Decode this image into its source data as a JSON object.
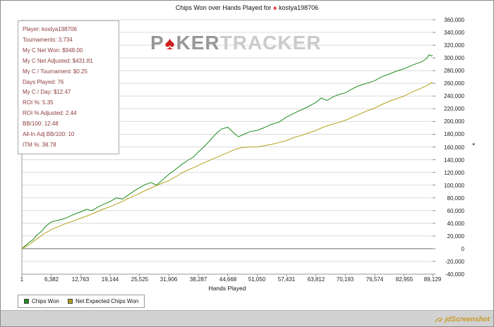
{
  "header": {
    "title_prefix": "Chips Won over Hands Played for",
    "player": "kostya198706"
  },
  "icons": {
    "site_spade": "♠",
    "watermark_spade": "♠"
  },
  "watermark": {
    "p": "P",
    "ker": "KER",
    "tracker": "TRACKER"
  },
  "stats_panel": {
    "items": [
      {
        "label": "Player:",
        "value": "kostya198706"
      },
      {
        "label": "Tournaments:",
        "value": "3,734"
      },
      {
        "label": "My C Net Won:",
        "value": "$948.00"
      },
      {
        "label": "My C Net Adjusted:",
        "value": "$431.81"
      },
      {
        "label": "My C / Tournament:",
        "value": "$0.25"
      },
      {
        "label": "Days Played:",
        "value": "76"
      },
      {
        "label": "My C / Day:",
        "value": "$12.47"
      },
      {
        "label": "ROI %:",
        "value": "5.35"
      },
      {
        "label": "ROI % Adjusted:",
        "value": "2.44"
      },
      {
        "label": "BB/100:",
        "value": "12.48"
      },
      {
        "label": "All-In Adj BB/100:",
        "value": "10"
      },
      {
        "label": "ITM %:",
        "value": "38.78"
      }
    ]
  },
  "axis": {
    "asterisk": "*"
  },
  "legend": {
    "items": [
      {
        "label": "Chips Won",
        "color": "#1e8c1e"
      },
      {
        "label": "Net Expected Chips Won",
        "color": "#b5a018"
      }
    ]
  },
  "footer": {
    "watermark": "jdScreenshot"
  },
  "chart_data": {
    "type": "line",
    "title": "Chips Won over Hands Played for kostya198706",
    "xlabel": "Hands Played",
    "ylabel": "",
    "xlim": [
      1,
      89129
    ],
    "ylim": [
      -40000,
      360000
    ],
    "grid": "horizontal",
    "legend_position": "bottom-left",
    "y_ticks": [
      360000,
      340000,
      320000,
      300000,
      280000,
      260000,
      240000,
      220000,
      200000,
      180000,
      160000,
      140000,
      120000,
      100000,
      80000,
      60000,
      40000,
      20000,
      0,
      -20000,
      -40000
    ],
    "y_tick_labels": [
      "360,000",
      "340,000",
      "320,000",
      "300,000",
      "280,000",
      "260,000",
      "240,000",
      "220,000",
      "200,000",
      "180,000",
      "160,000",
      "140,000",
      "120,000",
      "100,000",
      "80,000",
      "60,000",
      "40,000",
      "20,000",
      "0",
      "-20,000",
      "-40,000"
    ],
    "x_ticks": [
      1,
      6382,
      12763,
      19144,
      25525,
      31906,
      38287,
      44668,
      51050,
      57431,
      63812,
      70193,
      76574,
      82955,
      89129
    ],
    "x_tick_labels": [
      "1",
      "6,382",
      "12,763",
      "19,144",
      "25,525",
      "31,906",
      "38,287",
      "44,668",
      "51,050",
      "57,431",
      "63,812",
      "70,193",
      "76,574",
      "82,955",
      "89,129"
    ],
    "series": [
      {
        "name": "Chips Won",
        "color": "#1e8c1e",
        "points": [
          [
            1,
            0
          ],
          [
            800,
            5000
          ],
          [
            1600,
            10000
          ],
          [
            2400,
            14000
          ],
          [
            3200,
            21000
          ],
          [
            4200,
            27000
          ],
          [
            5300,
            36000
          ],
          [
            6382,
            42000
          ],
          [
            7400,
            44000
          ],
          [
            8600,
            46000
          ],
          [
            9800,
            49000
          ],
          [
            11000,
            53000
          ],
          [
            12000,
            56000
          ],
          [
            12763,
            58000
          ],
          [
            14000,
            62000
          ],
          [
            15200,
            60000
          ],
          [
            16400,
            65000
          ],
          [
            17800,
            70000
          ],
          [
            19144,
            74000
          ],
          [
            20500,
            80000
          ],
          [
            21800,
            78000
          ],
          [
            23200,
            85000
          ],
          [
            24400,
            91000
          ],
          [
            25525,
            96000
          ],
          [
            26800,
            101000
          ],
          [
            28000,
            104000
          ],
          [
            29200,
            100000
          ],
          [
            30500,
            108000
          ],
          [
            31906,
            117000
          ],
          [
            33200,
            124000
          ],
          [
            34600,
            132000
          ],
          [
            36000,
            139000
          ],
          [
            37200,
            144000
          ],
          [
            38287,
            152000
          ],
          [
            39500,
            160000
          ],
          [
            40800,
            170000
          ],
          [
            42000,
            180000
          ],
          [
            43300,
            188000
          ],
          [
            44668,
            191000
          ],
          [
            45800,
            183000
          ],
          [
            47000,
            176000
          ],
          [
            48200,
            180000
          ],
          [
            49500,
            184000
          ],
          [
            51050,
            186000
          ],
          [
            52500,
            190000
          ],
          [
            54000,
            195000
          ],
          [
            55800,
            199000
          ],
          [
            57431,
            207000
          ],
          [
            58800,
            212000
          ],
          [
            60200,
            217000
          ],
          [
            61800,
            222000
          ],
          [
            63812,
            230000
          ],
          [
            65000,
            237000
          ],
          [
            66200,
            233000
          ],
          [
            67600,
            239000
          ],
          [
            69000,
            243000
          ],
          [
            70193,
            245000
          ],
          [
            71600,
            251000
          ],
          [
            73000,
            256000
          ],
          [
            74800,
            260000
          ],
          [
            76574,
            264000
          ],
          [
            78000,
            270000
          ],
          [
            79500,
            274000
          ],
          [
            81200,
            279000
          ],
          [
            82955,
            283000
          ],
          [
            84200,
            287000
          ],
          [
            85600,
            291000
          ],
          [
            86800,
            294000
          ],
          [
            87800,
            299000
          ],
          [
            88400,
            305000
          ],
          [
            88800,
            303000
          ],
          [
            89129,
            304000
          ]
        ]
      },
      {
        "name": "Net Expected Chips Won",
        "color": "#b5a018",
        "points": [
          [
            1,
            0
          ],
          [
            1500,
            6000
          ],
          [
            3000,
            14000
          ],
          [
            4500,
            22000
          ],
          [
            6382,
            30000
          ],
          [
            8000,
            35000
          ],
          [
            9700,
            40000
          ],
          [
            11300,
            44000
          ],
          [
            12763,
            48000
          ],
          [
            14300,
            52000
          ],
          [
            16000,
            57000
          ],
          [
            17600,
            62000
          ],
          [
            19144,
            66000
          ],
          [
            20800,
            71000
          ],
          [
            22500,
            77000
          ],
          [
            24000,
            82000
          ],
          [
            25525,
            87000
          ],
          [
            27200,
            93000
          ],
          [
            28800,
            98000
          ],
          [
            30400,
            103000
          ],
          [
            31906,
            107000
          ],
          [
            33600,
            114000
          ],
          [
            35200,
            121000
          ],
          [
            36800,
            126000
          ],
          [
            38287,
            131000
          ],
          [
            39800,
            136000
          ],
          [
            41400,
            141000
          ],
          [
            43000,
            146000
          ],
          [
            44668,
            151000
          ],
          [
            46200,
            156000
          ],
          [
            47800,
            159000
          ],
          [
            49400,
            160000
          ],
          [
            51050,
            160000
          ],
          [
            52600,
            162000
          ],
          [
            54200,
            164000
          ],
          [
            55800,
            167000
          ],
          [
            57431,
            170000
          ],
          [
            59000,
            175000
          ],
          [
            60600,
            178000
          ],
          [
            62200,
            182000
          ],
          [
            63812,
            186000
          ],
          [
            65400,
            191000
          ],
          [
            67000,
            195000
          ],
          [
            68600,
            198000
          ],
          [
            70193,
            202000
          ],
          [
            71800,
            207000
          ],
          [
            73400,
            212000
          ],
          [
            75000,
            217000
          ],
          [
            76574,
            221000
          ],
          [
            78200,
            227000
          ],
          [
            79800,
            232000
          ],
          [
            81400,
            236000
          ],
          [
            82955,
            240000
          ],
          [
            84600,
            246000
          ],
          [
            86200,
            251000
          ],
          [
            87800,
            256000
          ],
          [
            89129,
            262000
          ]
        ]
      }
    ]
  }
}
